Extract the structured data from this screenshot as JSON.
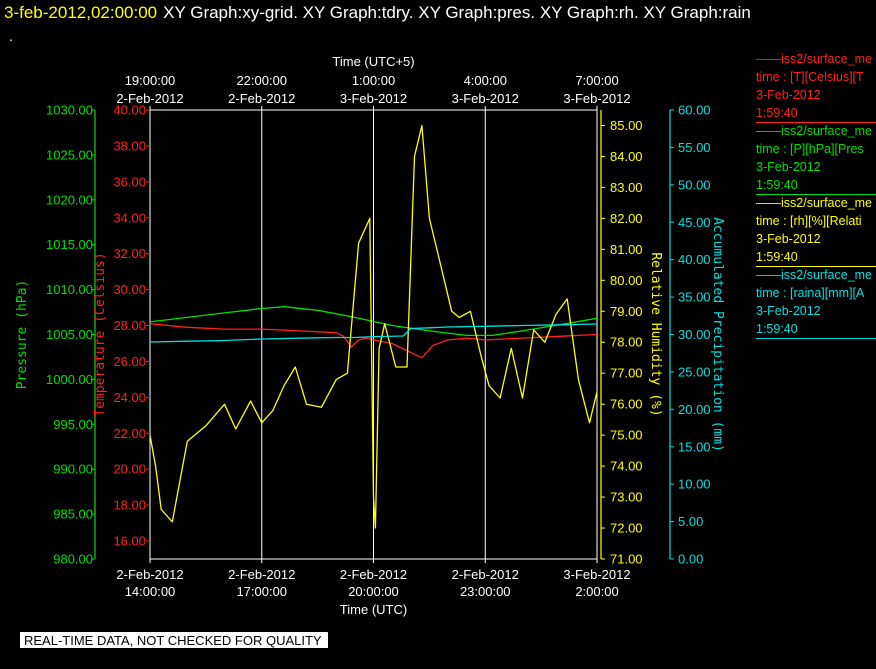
{
  "header": {
    "datetime": "3-feb-2012,02:00:00",
    "graphs": "XY Graph:xy-grid.  XY Graph:tdry.  XY Graph:pres.  XY Graph:rh.  XY Graph:rain",
    "dot": "."
  },
  "legend": [
    {
      "name": "——iss2/surface_me",
      "desc": "time : [T][Celsius][T",
      "date": "3-Feb-2012",
      "time": "1:59:40",
      "color": "#ff2020"
    },
    {
      "name": "——iss2/surface_me",
      "desc": "time : [P][hPa][Pres",
      "date": "3-Feb-2012",
      "time": "1:59:40",
      "color": "#00e000"
    },
    {
      "name": "——iss2/surface_me",
      "desc": "time : [rh][%][Relati",
      "date": "3-Feb-2012",
      "time": "1:59:40",
      "color": "#ffff00"
    },
    {
      "name": "——iss2/surface_me",
      "desc": "time : [raina][mm][A",
      "date": "3-Feb-2012",
      "time": "1:59:40",
      "color": "#00e0e0"
    }
  ],
  "banner": "REAL-TIME DATA, NOT CHECKED FOR QUALITY",
  "chart_data": {
    "type": "line",
    "grid": true,
    "top_axis": {
      "label": "Time (UTC+5)",
      "ticks": [
        {
          "t": 0,
          "line1": "19:00:00",
          "line2": "2-Feb-2012"
        },
        {
          "t": 3,
          "line1": "22:00:00",
          "line2": "2-Feb-2012"
        },
        {
          "t": 6,
          "line1": "1:00:00",
          "line2": "3-Feb-2012"
        },
        {
          "t": 9,
          "line1": "4:00:00",
          "line2": "3-Feb-2012"
        },
        {
          "t": 12,
          "line1": "7:00:00",
          "line2": "3-Feb-2012"
        }
      ]
    },
    "bottom_axis": {
      "label": "Time (UTC)",
      "ticks": [
        {
          "t": 0,
          "line1": "2-Feb-2012",
          "line2": "14:00:00"
        },
        {
          "t": 3,
          "line1": "2-Feb-2012",
          "line2": "17:00:00"
        },
        {
          "t": 6,
          "line1": "2-Feb-2012",
          "line2": "20:00:00"
        },
        {
          "t": 9,
          "line1": "2-Feb-2012",
          "line2": "23:00:00"
        },
        {
          "t": 12,
          "line1": "3-Feb-2012",
          "line2": "2:00:00"
        }
      ]
    },
    "y_axes": [
      {
        "key": "pres",
        "label": "Pressure (hPa)",
        "color": "#00e000",
        "min": 980,
        "max": 1030,
        "ticks": [
          "980.00",
          "985.00",
          "990.00",
          "995.00",
          "1000.00",
          "1005.00",
          "1010.00",
          "1015.00",
          "1020.00",
          "1025.00",
          "1030.00"
        ]
      },
      {
        "key": "temp",
        "label": "Temperature (Celsius)",
        "color": "#ff2020",
        "min": 15,
        "max": 40,
        "ticks": [
          "16.00",
          "18.00",
          "20.00",
          "22.00",
          "24.00",
          "26.00",
          "28.00",
          "30.00",
          "32.00",
          "34.00",
          "36.00",
          "38.00",
          "40.00"
        ]
      },
      {
        "key": "rh",
        "label": "Relative Humidity (%)",
        "color": "#ffff00",
        "min": 71,
        "max": 85.5,
        "ticks": [
          "71.00",
          "72.00",
          "73.00",
          "74.00",
          "75.00",
          "76.00",
          "77.00",
          "78.00",
          "79.00",
          "80.00",
          "81.00",
          "82.00",
          "83.00",
          "84.00",
          "85.00"
        ]
      },
      {
        "key": "rain",
        "label": "Accumulated Precipitation (mm)",
        "color": "#00e0e0",
        "min": 0,
        "max": 60,
        "ticks": [
          "0.00",
          "5.00",
          "10.00",
          "15.00",
          "20.00",
          "25.00",
          "30.00",
          "35.00",
          "40.00",
          "45.00",
          "50.00",
          "55.00",
          "60.00"
        ]
      }
    ],
    "x_range_hours": [
      0,
      12
    ],
    "series": [
      {
        "name": "Pressure",
        "axis": "pres",
        "color": "#00e000",
        "x": [
          0,
          1,
          2,
          3,
          3.6,
          4.5,
          5.5,
          6.5,
          7.5,
          8.5,
          9.2,
          10,
          11,
          12
        ],
        "y": [
          1006.4,
          1006.9,
          1007.4,
          1007.9,
          1008.1,
          1007.7,
          1006.9,
          1006.0,
          1005.4,
          1004.9,
          1004.9,
          1005.4,
          1006.1,
          1006.8
        ]
      },
      {
        "name": "Temperature",
        "axis": "temp",
        "color": "#ff2020",
        "x": [
          0,
          1,
          2,
          3,
          4,
          5,
          5.2,
          5.4,
          5.6,
          5.8,
          6.0,
          6.5,
          7.0,
          7.3,
          7.6,
          8.0,
          8.5,
          9.0,
          10,
          11,
          12
        ],
        "y": [
          28.1,
          27.9,
          27.8,
          27.8,
          27.7,
          27.6,
          27.4,
          26.8,
          27.2,
          27.3,
          27.2,
          27.0,
          26.5,
          26.2,
          26.9,
          27.2,
          27.3,
          27.2,
          27.3,
          27.4,
          27.5
        ]
      },
      {
        "name": "Relative Humidity",
        "axis": "rh",
        "color": "#ffff00",
        "x": [
          0,
          0.15,
          0.3,
          0.6,
          1.0,
          1.5,
          2.0,
          2.3,
          2.7,
          3.0,
          3.3,
          3.6,
          3.9,
          4.2,
          4.6,
          5.0,
          5.3,
          5.6,
          5.9,
          6.0,
          6.05,
          6.15,
          6.3,
          6.6,
          6.9,
          7.1,
          7.3,
          7.5,
          7.8,
          8.1,
          8.3,
          8.6,
          8.9,
          9.1,
          9.4,
          9.7,
          10.0,
          10.3,
          10.6,
          10.9,
          11.2,
          11.5,
          11.8,
          12.0
        ],
        "y": [
          75.0,
          74.0,
          72.6,
          72.2,
          74.8,
          75.3,
          76.0,
          75.2,
          76.1,
          75.4,
          75.8,
          76.6,
          77.2,
          76.0,
          75.9,
          76.8,
          77.0,
          81.2,
          82.0,
          73.0,
          72.0,
          77.8,
          78.6,
          77.2,
          77.2,
          84.0,
          85.0,
          82.0,
          80.5,
          79.0,
          78.8,
          79.0,
          77.5,
          76.6,
          76.2,
          77.8,
          76.2,
          78.4,
          78.0,
          78.9,
          79.4,
          76.8,
          75.4,
          76.4
        ]
      },
      {
        "name": "Accumulated Precipitation",
        "axis": "rain",
        "color": "#00e0e0",
        "x": [
          0,
          1,
          2,
          3,
          4,
          5,
          5.5,
          6.0,
          6.8,
          7.0,
          7.5,
          8,
          9,
          10,
          11,
          12
        ],
        "y": [
          29.0,
          29.1,
          29.2,
          29.4,
          29.5,
          29.6,
          29.6,
          29.7,
          29.8,
          30.8,
          30.9,
          31.0,
          31.1,
          31.2,
          31.3,
          31.4
        ]
      }
    ]
  }
}
